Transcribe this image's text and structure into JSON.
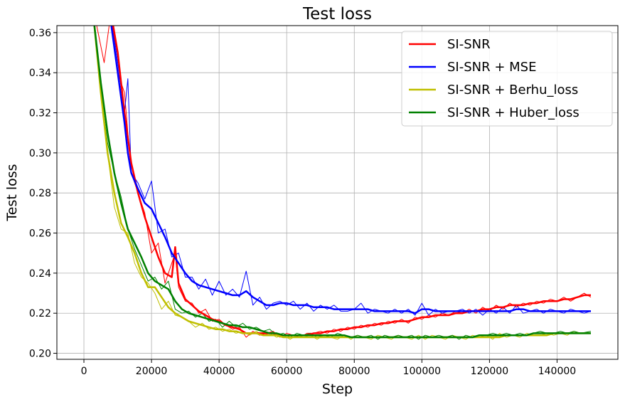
{
  "chart_data": {
    "type": "line",
    "title": "Test loss",
    "xlabel": "Step",
    "ylabel": "Test loss",
    "xlim": [
      -8000,
      158000
    ],
    "ylim": [
      0.197,
      0.3635
    ],
    "xticks": [
      0,
      20000,
      40000,
      60000,
      80000,
      100000,
      120000,
      140000
    ],
    "xtick_labels": [
      "0",
      "20000",
      "40000",
      "60000",
      "80000",
      "100000",
      "120000",
      "140000"
    ],
    "yticks": [
      0.2,
      0.22,
      0.24,
      0.26,
      0.28,
      0.3,
      0.32,
      0.34,
      0.36
    ],
    "ytick_labels": [
      "0.20",
      "0.22",
      "0.24",
      "0.26",
      "0.28",
      "0.30",
      "0.32",
      "0.34",
      "0.36"
    ],
    "grid": true,
    "legend_position": "top-right",
    "series": [
      {
        "name": "SI-SNR",
        "color": "#ff0000",
        "x": [
          3000,
          6000,
          8000,
          10000,
          12000,
          14000,
          16000,
          18000,
          20000,
          22000,
          24000,
          26000,
          27000,
          28000,
          30000,
          32000,
          34000,
          36000,
          38000,
          40000,
          42000,
          44000,
          46000,
          48000,
          50000,
          52000,
          54000,
          56000,
          58000,
          60000,
          62000,
          64000,
          66000,
          68000,
          70000,
          72000,
          74000,
          76000,
          78000,
          80000,
          82000,
          84000,
          86000,
          88000,
          90000,
          92000,
          94000,
          96000,
          98000,
          100000,
          102000,
          104000,
          106000,
          108000,
          110000,
          112000,
          114000,
          116000,
          118000,
          120000,
          122000,
          124000,
          126000,
          128000,
          130000,
          132000,
          134000,
          136000,
          138000,
          140000,
          142000,
          144000,
          146000,
          148000,
          150000
        ],
        "smooth": [
          0.37,
          0.37,
          0.37,
          0.35,
          0.32,
          0.295,
          0.28,
          0.268,
          0.258,
          0.248,
          0.24,
          0.238,
          0.253,
          0.235,
          0.227,
          0.224,
          0.221,
          0.219,
          0.217,
          0.216,
          0.214,
          0.213,
          0.212,
          0.21,
          0.21,
          0.21,
          0.21,
          0.21,
          0.209,
          0.209,
          0.209,
          0.209,
          0.209,
          0.21,
          0.21,
          0.211,
          0.211,
          0.212,
          0.212,
          0.213,
          0.213,
          0.214,
          0.214,
          0.215,
          0.215,
          0.216,
          0.216,
          0.216,
          0.217,
          0.218,
          0.218,
          0.219,
          0.219,
          0.219,
          0.22,
          0.22,
          0.221,
          0.221,
          0.222,
          0.222,
          0.223,
          0.223,
          0.224,
          0.224,
          0.224,
          0.225,
          0.225,
          0.226,
          0.226,
          0.226,
          0.227,
          0.227,
          0.228,
          0.229,
          0.229
        ],
        "raw": [
          0.37,
          0.345,
          0.37,
          0.34,
          0.33,
          0.29,
          0.28,
          0.27,
          0.25,
          0.255,
          0.235,
          0.245,
          0.25,
          0.233,
          0.226,
          0.225,
          0.22,
          0.222,
          0.216,
          0.217,
          0.214,
          0.212,
          0.213,
          0.208,
          0.211,
          0.209,
          0.21,
          0.211,
          0.208,
          0.21,
          0.209,
          0.208,
          0.21,
          0.21,
          0.211,
          0.21,
          0.212,
          0.211,
          0.213,
          0.212,
          0.214,
          0.213,
          0.215,
          0.214,
          0.216,
          0.215,
          0.217,
          0.215,
          0.218,
          0.217,
          0.219,
          0.218,
          0.22,
          0.219,
          0.221,
          0.22,
          0.222,
          0.22,
          0.223,
          0.221,
          0.224,
          0.222,
          0.225,
          0.223,
          0.225,
          0.224,
          0.226,
          0.225,
          0.227,
          0.226,
          0.228,
          0.226,
          0.228,
          0.23,
          0.228
        ]
      },
      {
        "name": "SI-SNR + MSE",
        "color": "#0000ff",
        "x": [
          8000,
          10000,
          12000,
          13000,
          14000,
          16000,
          18000,
          20000,
          22000,
          24000,
          26000,
          28000,
          30000,
          32000,
          34000,
          36000,
          38000,
          40000,
          42000,
          44000,
          46000,
          48000,
          50000,
          52000,
          54000,
          56000,
          58000,
          60000,
          62000,
          64000,
          66000,
          68000,
          70000,
          72000,
          74000,
          76000,
          78000,
          80000,
          82000,
          84000,
          86000,
          88000,
          90000,
          92000,
          94000,
          96000,
          98000,
          100000,
          102000,
          104000,
          106000,
          108000,
          110000,
          112000,
          114000,
          116000,
          118000,
          120000,
          122000,
          124000,
          126000,
          128000,
          130000,
          132000,
          134000,
          136000,
          138000,
          140000,
          142000,
          144000,
          146000,
          148000,
          150000
        ],
        "smooth": [
          0.365,
          0.34,
          0.315,
          0.3,
          0.29,
          0.282,
          0.275,
          0.272,
          0.265,
          0.258,
          0.25,
          0.245,
          0.24,
          0.236,
          0.234,
          0.233,
          0.232,
          0.231,
          0.23,
          0.229,
          0.229,
          0.231,
          0.228,
          0.226,
          0.224,
          0.224,
          0.225,
          0.225,
          0.224,
          0.224,
          0.224,
          0.223,
          0.223,
          0.223,
          0.222,
          0.222,
          0.222,
          0.222,
          0.222,
          0.222,
          0.221,
          0.221,
          0.221,
          0.221,
          0.221,
          0.221,
          0.22,
          0.222,
          0.222,
          0.221,
          0.221,
          0.221,
          0.221,
          0.221,
          0.221,
          0.221,
          0.221,
          0.221,
          0.221,
          0.221,
          0.221,
          0.222,
          0.222,
          0.221,
          0.221,
          0.221,
          0.221,
          0.221,
          0.221,
          0.221,
          0.221,
          0.221,
          0.221
        ],
        "raw": [
          0.37,
          0.345,
          0.32,
          0.337,
          0.29,
          0.285,
          0.277,
          0.286,
          0.26,
          0.262,
          0.248,
          0.25,
          0.238,
          0.238,
          0.232,
          0.237,
          0.229,
          0.236,
          0.229,
          0.232,
          0.228,
          0.241,
          0.224,
          0.228,
          0.222,
          0.225,
          0.226,
          0.224,
          0.226,
          0.222,
          0.225,
          0.221,
          0.224,
          0.222,
          0.224,
          0.221,
          0.221,
          0.222,
          0.225,
          0.22,
          0.222,
          0.221,
          0.22,
          0.222,
          0.22,
          0.222,
          0.219,
          0.225,
          0.219,
          0.222,
          0.22,
          0.221,
          0.221,
          0.222,
          0.22,
          0.222,
          0.219,
          0.222,
          0.22,
          0.223,
          0.22,
          0.224,
          0.22,
          0.221,
          0.222,
          0.22,
          0.222,
          0.221,
          0.22,
          0.222,
          0.221,
          0.22,
          0.221
        ]
      },
      {
        "name": "SI-SNR + Berhu_loss",
        "color": "#bfbf00",
        "x": [
          3000,
          5000,
          7000,
          9000,
          11000,
          13000,
          15000,
          17000,
          19000,
          21000,
          23000,
          25000,
          27000,
          29000,
          31000,
          33000,
          35000,
          37000,
          39000,
          41000,
          43000,
          45000,
          47000,
          49000,
          51000,
          53000,
          55000,
          57000,
          59000,
          61000,
          63000,
          65000,
          67000,
          69000,
          71000,
          73000,
          75000,
          77000,
          79000,
          81000,
          83000,
          85000,
          87000,
          89000,
          91000,
          93000,
          95000,
          97000,
          99000,
          101000,
          103000,
          105000,
          107000,
          109000,
          111000,
          113000,
          115000,
          117000,
          119000,
          121000,
          123000,
          125000,
          127000,
          129000,
          131000,
          133000,
          135000,
          137000,
          139000,
          141000,
          143000,
          145000,
          147000,
          150000
        ],
        "smooth": [
          0.365,
          0.33,
          0.3,
          0.28,
          0.265,
          0.258,
          0.25,
          0.24,
          0.233,
          0.233,
          0.228,
          0.223,
          0.22,
          0.218,
          0.216,
          0.215,
          0.214,
          0.213,
          0.212,
          0.212,
          0.211,
          0.211,
          0.21,
          0.21,
          0.21,
          0.209,
          0.209,
          0.209,
          0.208,
          0.208,
          0.208,
          0.208,
          0.208,
          0.208,
          0.208,
          0.208,
          0.208,
          0.208,
          0.208,
          0.208,
          0.208,
          0.208,
          0.208,
          0.208,
          0.208,
          0.208,
          0.208,
          0.208,
          0.208,
          0.208,
          0.208,
          0.208,
          0.208,
          0.208,
          0.208,
          0.208,
          0.208,
          0.208,
          0.208,
          0.208,
          0.208,
          0.209,
          0.209,
          0.209,
          0.209,
          0.209,
          0.209,
          0.209,
          0.21,
          0.21,
          0.21,
          0.21,
          0.21,
          0.21
        ],
        "raw": [
          0.365,
          0.33,
          0.3,
          0.273,
          0.262,
          0.26,
          0.245,
          0.238,
          0.235,
          0.23,
          0.222,
          0.226,
          0.219,
          0.218,
          0.216,
          0.213,
          0.215,
          0.212,
          0.213,
          0.211,
          0.212,
          0.21,
          0.211,
          0.209,
          0.211,
          0.209,
          0.21,
          0.208,
          0.209,
          0.207,
          0.209,
          0.208,
          0.209,
          0.207,
          0.209,
          0.208,
          0.207,
          0.209,
          0.207,
          0.209,
          0.208,
          0.207,
          0.209,
          0.208,
          0.207,
          0.209,
          0.208,
          0.207,
          0.209,
          0.207,
          0.209,
          0.208,
          0.207,
          0.209,
          0.208,
          0.207,
          0.209,
          0.208,
          0.209,
          0.207,
          0.21,
          0.208,
          0.209,
          0.208,
          0.21,
          0.209,
          0.209,
          0.21,
          0.209,
          0.21,
          0.209,
          0.211,
          0.21,
          0.21
        ]
      },
      {
        "name": "SI-SNR + Huber_loss",
        "color": "#008000",
        "x": [
          3000,
          5000,
          7000,
          9000,
          11000,
          13000,
          15000,
          17000,
          19000,
          21000,
          23000,
          25000,
          27000,
          29000,
          31000,
          33000,
          35000,
          37000,
          39000,
          41000,
          43000,
          45000,
          47000,
          49000,
          51000,
          53000,
          55000,
          57000,
          59000,
          61000,
          63000,
          65000,
          67000,
          69000,
          71000,
          73000,
          75000,
          77000,
          79000,
          81000,
          83000,
          85000,
          87000,
          89000,
          91000,
          93000,
          95000,
          97000,
          99000,
          101000,
          103000,
          105000,
          107000,
          109000,
          111000,
          113000,
          115000,
          117000,
          119000,
          121000,
          123000,
          125000,
          127000,
          129000,
          131000,
          133000,
          135000,
          137000,
          139000,
          141000,
          143000,
          145000,
          147000,
          150000
        ],
        "smooth": [
          0.365,
          0.335,
          0.31,
          0.29,
          0.275,
          0.262,
          0.255,
          0.248,
          0.24,
          0.236,
          0.234,
          0.232,
          0.226,
          0.222,
          0.22,
          0.219,
          0.218,
          0.217,
          0.216,
          0.215,
          0.214,
          0.214,
          0.213,
          0.213,
          0.212,
          0.211,
          0.21,
          0.21,
          0.209,
          0.209,
          0.209,
          0.209,
          0.209,
          0.209,
          0.209,
          0.209,
          0.209,
          0.209,
          0.208,
          0.208,
          0.208,
          0.208,
          0.208,
          0.208,
          0.208,
          0.208,
          0.208,
          0.208,
          0.208,
          0.208,
          0.208,
          0.208,
          0.208,
          0.208,
          0.208,
          0.208,
          0.208,
          0.209,
          0.209,
          0.209,
          0.209,
          0.209,
          0.209,
          0.209,
          0.209,
          0.21,
          0.21,
          0.21,
          0.21,
          0.21,
          0.21,
          0.21,
          0.21,
          0.21
        ],
        "raw": [
          0.365,
          0.33,
          0.305,
          0.29,
          0.278,
          0.262,
          0.252,
          0.244,
          0.236,
          0.238,
          0.232,
          0.236,
          0.222,
          0.22,
          0.221,
          0.218,
          0.22,
          0.216,
          0.217,
          0.213,
          0.216,
          0.213,
          0.215,
          0.212,
          0.213,
          0.211,
          0.212,
          0.209,
          0.21,
          0.208,
          0.21,
          0.209,
          0.21,
          0.208,
          0.209,
          0.208,
          0.21,
          0.209,
          0.208,
          0.209,
          0.208,
          0.209,
          0.207,
          0.209,
          0.208,
          0.209,
          0.208,
          0.209,
          0.207,
          0.209,
          0.208,
          0.209,
          0.208,
          0.209,
          0.207,
          0.209,
          0.208,
          0.209,
          0.209,
          0.21,
          0.209,
          0.21,
          0.209,
          0.21,
          0.209,
          0.21,
          0.211,
          0.21,
          0.21,
          0.211,
          0.21,
          0.211,
          0.21,
          0.211
        ]
      }
    ]
  }
}
